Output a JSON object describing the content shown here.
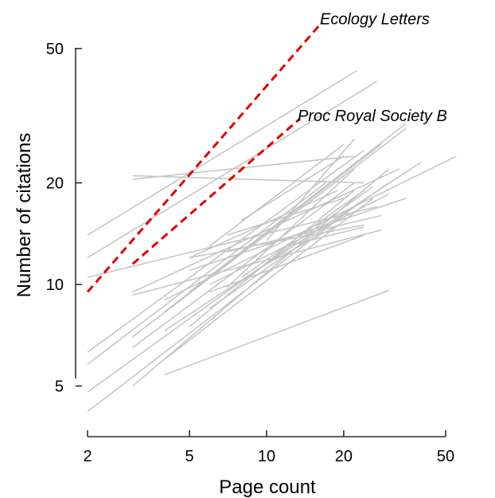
{
  "chart_data": {
    "type": "line",
    "title": "",
    "xlabel": "Page count",
    "ylabel": "Number of citations",
    "x_scale": "log",
    "y_scale": "log",
    "xlim": [
      2,
      55
    ],
    "ylim": [
      3.5,
      60
    ],
    "x_ticks": [
      2,
      5,
      10,
      20,
      50
    ],
    "y_ticks": [
      5,
      10,
      20,
      50
    ],
    "grid": false,
    "legend": "none",
    "colors": {
      "journal": "#c3c3c3",
      "highlight": "#e00000"
    },
    "highlighted": [
      {
        "name": "Ecology Letters",
        "x": [
          2,
          16.5
        ],
        "y": [
          9.5,
          60
        ]
      },
      {
        "name": "Proc Royal Society B",
        "x": [
          3,
          13.5
        ],
        "y": [
          11.5,
          31
        ]
      }
    ],
    "journals": [
      {
        "x": [
          2,
          22.5
        ],
        "y": [
          14,
          43
        ]
      },
      {
        "x": [
          2,
          27
        ],
        "y": [
          12,
          40
        ]
      },
      {
        "x": [
          3,
          22
        ],
        "y": [
          20.5,
          24
        ]
      },
      {
        "x": [
          3,
          24
        ],
        "y": [
          21,
          20
        ]
      },
      {
        "x": [
          2,
          27
        ],
        "y": [
          10.5,
          17
        ]
      },
      {
        "x": [
          2,
          24
        ],
        "y": [
          6.3,
          25
        ]
      },
      {
        "x": [
          2,
          17
        ],
        "y": [
          5.8,
          20
        ]
      },
      {
        "x": [
          2,
          26
        ],
        "y": [
          4.8,
          19.5
        ]
      },
      {
        "x": [
          2,
          22
        ],
        "y": [
          4.2,
          17
        ]
      },
      {
        "x": [
          3,
          30
        ],
        "y": [
          5,
          22
        ]
      },
      {
        "x": [
          3,
          35
        ],
        "y": [
          7,
          29
        ]
      },
      {
        "x": [
          3,
          33
        ],
        "y": [
          9.5,
          22
        ]
      },
      {
        "x": [
          3,
          28
        ],
        "y": [
          9.3,
          14.5
        ]
      },
      {
        "x": [
          3,
          22
        ],
        "y": [
          6.5,
          20
        ]
      },
      {
        "x": [
          4,
          30
        ],
        "y": [
          5.4,
          9.6
        ]
      },
      {
        "x": [
          4,
          40
        ],
        "y": [
          7.3,
          23
        ]
      },
      {
        "x": [
          4,
          55
        ],
        "y": [
          9,
          24
        ]
      },
      {
        "x": [
          4,
          26
        ],
        "y": [
          6,
          18
        ]
      },
      {
        "x": [
          4,
          28
        ],
        "y": [
          8.3,
          26
        ]
      },
      {
        "x": [
          5,
          35
        ],
        "y": [
          9.5,
          30
        ]
      },
      {
        "x": [
          5,
          35
        ],
        "y": [
          11,
          18
        ]
      },
      {
        "x": [
          5,
          24
        ],
        "y": [
          12,
          15
        ]
      },
      {
        "x": [
          5,
          22
        ],
        "y": [
          7.5,
          19
        ]
      },
      {
        "x": [
          5,
          19
        ],
        "y": [
          12,
          19
        ]
      },
      {
        "x": [
          6,
          30
        ],
        "y": [
          10,
          18.5
        ]
      },
      {
        "x": [
          6,
          24
        ],
        "y": [
          9.5,
          14
        ]
      },
      {
        "x": [
          6,
          20
        ],
        "y": [
          13,
          26
        ]
      },
      {
        "x": [
          6,
          30
        ],
        "y": [
          8.5,
          20
        ]
      },
      {
        "x": [
          7,
          22
        ],
        "y": [
          9.8,
          22
        ]
      },
      {
        "x": [
          7,
          28
        ],
        "y": [
          12.5,
          16
        ]
      },
      {
        "x": [
          7,
          20
        ],
        "y": [
          14,
          18
        ]
      },
      {
        "x": [
          8,
          24
        ],
        "y": [
          10.5,
          19
        ]
      },
      {
        "x": [
          8,
          20
        ],
        "y": [
          15.5,
          24
        ]
      },
      {
        "x": [
          9,
          19
        ],
        "y": [
          11,
          15
        ]
      },
      {
        "x": [
          10,
          22
        ],
        "y": [
          13.5,
          27
        ]
      },
      {
        "x": [
          12,
          24
        ],
        "y": [
          13,
          14.8
        ]
      }
    ]
  }
}
